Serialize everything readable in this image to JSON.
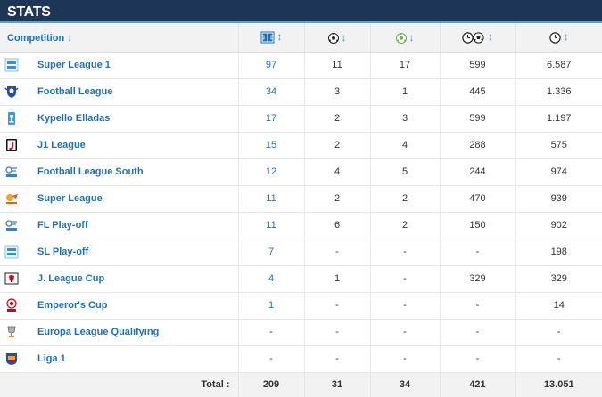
{
  "header": {
    "title": "STATS"
  },
  "columns": [
    {
      "label": "Competition",
      "icon": "competition-sort"
    },
    {
      "label": "",
      "icon": "appearances-icon"
    },
    {
      "label": "",
      "icon": "goals-icon"
    },
    {
      "label": "",
      "icon": "assists-icon"
    },
    {
      "label": "",
      "icon": "minutes-per-goal-icon"
    },
    {
      "label": "",
      "icon": "minutes-played-icon"
    }
  ],
  "sort_glyph": "↕",
  "colors": {
    "header_bg": "#1d3557",
    "link": "#1d70b7",
    "row_border": "#e6e6e6"
  },
  "rows": [
    {
      "name": "Super League 1",
      "logo": "super-league-1-logo",
      "apps": "97",
      "goals": "11",
      "assists": "17",
      "mpg": "599",
      "minutes": "6.587"
    },
    {
      "name": "Football League",
      "logo": "football-league-logo",
      "apps": "34",
      "goals": "3",
      "assists": "1",
      "mpg": "445",
      "minutes": "1.336"
    },
    {
      "name": "Kypello Elladas",
      "logo": "kypello-elladas-logo",
      "apps": "17",
      "goals": "2",
      "assists": "3",
      "mpg": "599",
      "minutes": "1.197"
    },
    {
      "name": "J1 League",
      "logo": "j1-league-logo",
      "apps": "15",
      "goals": "2",
      "assists": "4",
      "mpg": "288",
      "minutes": "575"
    },
    {
      "name": "Football League South",
      "logo": "football-league-south-logo",
      "apps": "12",
      "goals": "4",
      "assists": "5",
      "mpg": "244",
      "minutes": "974"
    },
    {
      "name": "Super League",
      "logo": "super-league-logo",
      "apps": "11",
      "goals": "2",
      "assists": "2",
      "mpg": "470",
      "minutes": "939"
    },
    {
      "name": "FL Play-off",
      "logo": "fl-play-off-logo",
      "apps": "11",
      "goals": "6",
      "assists": "2",
      "mpg": "150",
      "minutes": "902"
    },
    {
      "name": "SL Play-off",
      "logo": "sl-play-off-logo",
      "apps": "7",
      "goals": "-",
      "assists": "-",
      "mpg": "-",
      "minutes": "198"
    },
    {
      "name": "J. League Cup",
      "logo": "j-league-cup-logo",
      "apps": "4",
      "goals": "1",
      "assists": "-",
      "mpg": "329",
      "minutes": "329"
    },
    {
      "name": "Emperor's Cup",
      "logo": "emperors-cup-logo",
      "apps": "1",
      "goals": "-",
      "assists": "-",
      "mpg": "-",
      "minutes": "14"
    },
    {
      "name": "Europa League Qualifying",
      "logo": "europa-league-qualifying-logo",
      "apps": "-",
      "goals": "-",
      "assists": "-",
      "mpg": "-",
      "minutes": "-"
    },
    {
      "name": "Liga 1",
      "logo": "liga-1-logo",
      "apps": "-",
      "goals": "-",
      "assists": "-",
      "mpg": "-",
      "minutes": "-"
    }
  ],
  "totals": {
    "label": "Total :",
    "apps": "209",
    "goals": "31",
    "assists": "34",
    "mpg": "421",
    "minutes": "13.051"
  }
}
